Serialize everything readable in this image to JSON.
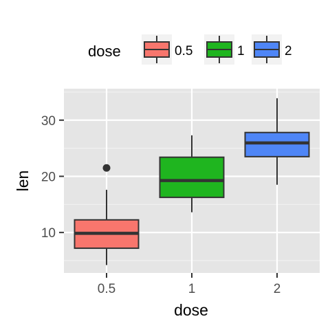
{
  "chart_data": {
    "type": "box",
    "xlabel": "dose",
    "ylabel": "len",
    "categories": [
      "0.5",
      "1",
      "2"
    ],
    "y_ticks": [
      10,
      20,
      30
    ],
    "y_tick_labels": [
      "10",
      "20",
      "30"
    ],
    "ylim": [
      2.8,
      35.6
    ],
    "grid": true,
    "legend": {
      "title": "dose",
      "position": "top",
      "entries": [
        "0.5",
        "1",
        "2"
      ]
    },
    "series": [
      {
        "name": "0.5",
        "color": "#F8766D",
        "min": 4.2,
        "q1": 7.2,
        "median": 9.85,
        "q3": 12.25,
        "max": 17.6,
        "outliers": [
          21.5
        ]
      },
      {
        "name": "1",
        "color": "#1FB51F",
        "min": 13.6,
        "q1": 16.25,
        "median": 19.25,
        "q3": 23.4,
        "max": 27.3,
        "outliers": []
      },
      {
        "name": "2",
        "color": "#4F86F7",
        "min": 18.5,
        "q1": 23.5,
        "median": 25.95,
        "q3": 27.8,
        "max": 33.9,
        "outliers": []
      }
    ]
  }
}
